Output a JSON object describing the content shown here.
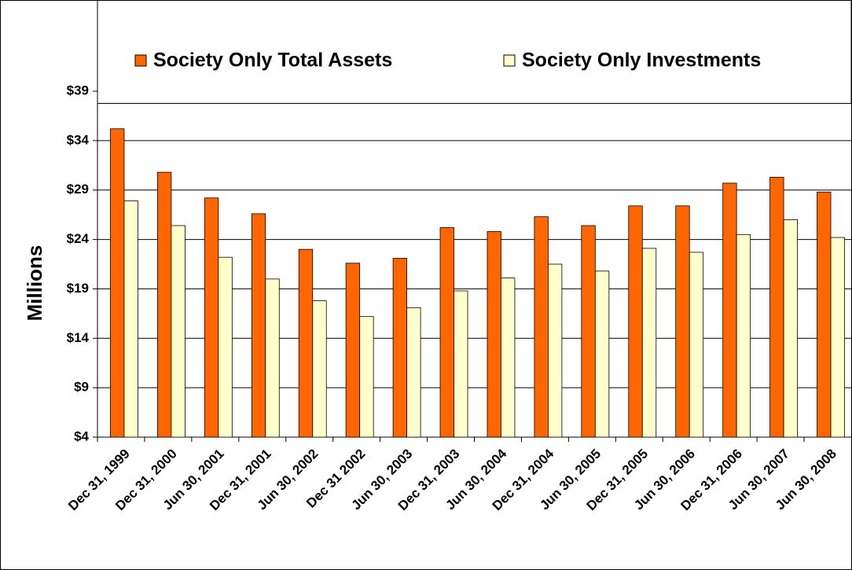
{
  "chart_data": {
    "type": "bar",
    "y_axis_label": "Millions",
    "categories": [
      "Dec 31, 1999",
      "Dec 31, 2000",
      "Jun 30, 2001",
      "Dec 31, 2001",
      "Jun 30, 2002",
      "Dec 31 2002",
      "Jun 30, 2003",
      "Dec 31, 2003",
      "Jun 30, 2004",
      "Dec 31, 2004",
      "Jun 30, 2005",
      "Dec 31, 2005",
      "Jun 30, 2006",
      "Dec 31, 2006",
      "Jun 30, 2007",
      "Jun 30, 2008"
    ],
    "series": [
      {
        "name": "Society Only Total Assets",
        "color": "#ff6600",
        "values": [
          35.2,
          30.8,
          28.2,
          26.6,
          23.0,
          21.6,
          22.1,
          25.2,
          24.8,
          26.3,
          25.4,
          27.4,
          27.4,
          29.7,
          30.3,
          28.8
        ]
      },
      {
        "name": "Society Only Investments",
        "color": "#ffffcc",
        "values": [
          27.9,
          25.4,
          22.2,
          20.0,
          17.8,
          16.2,
          17.1,
          18.8,
          20.1,
          21.5,
          20.8,
          23.1,
          22.7,
          24.5,
          26.0,
          24.2
        ]
      }
    ],
    "ylim": [
      4,
      39
    ],
    "yticks": [
      {
        "value": 4,
        "label": "$4"
      },
      {
        "value": 9,
        "label": "$9"
      },
      {
        "value": 14,
        "label": "$14"
      },
      {
        "value": 19,
        "label": "$19"
      },
      {
        "value": 24,
        "label": "$24"
      },
      {
        "value": 29,
        "label": "$29"
      },
      {
        "value": 34,
        "label": "$34"
      },
      {
        "value": 39,
        "label": "$39"
      }
    ],
    "grid": true
  }
}
